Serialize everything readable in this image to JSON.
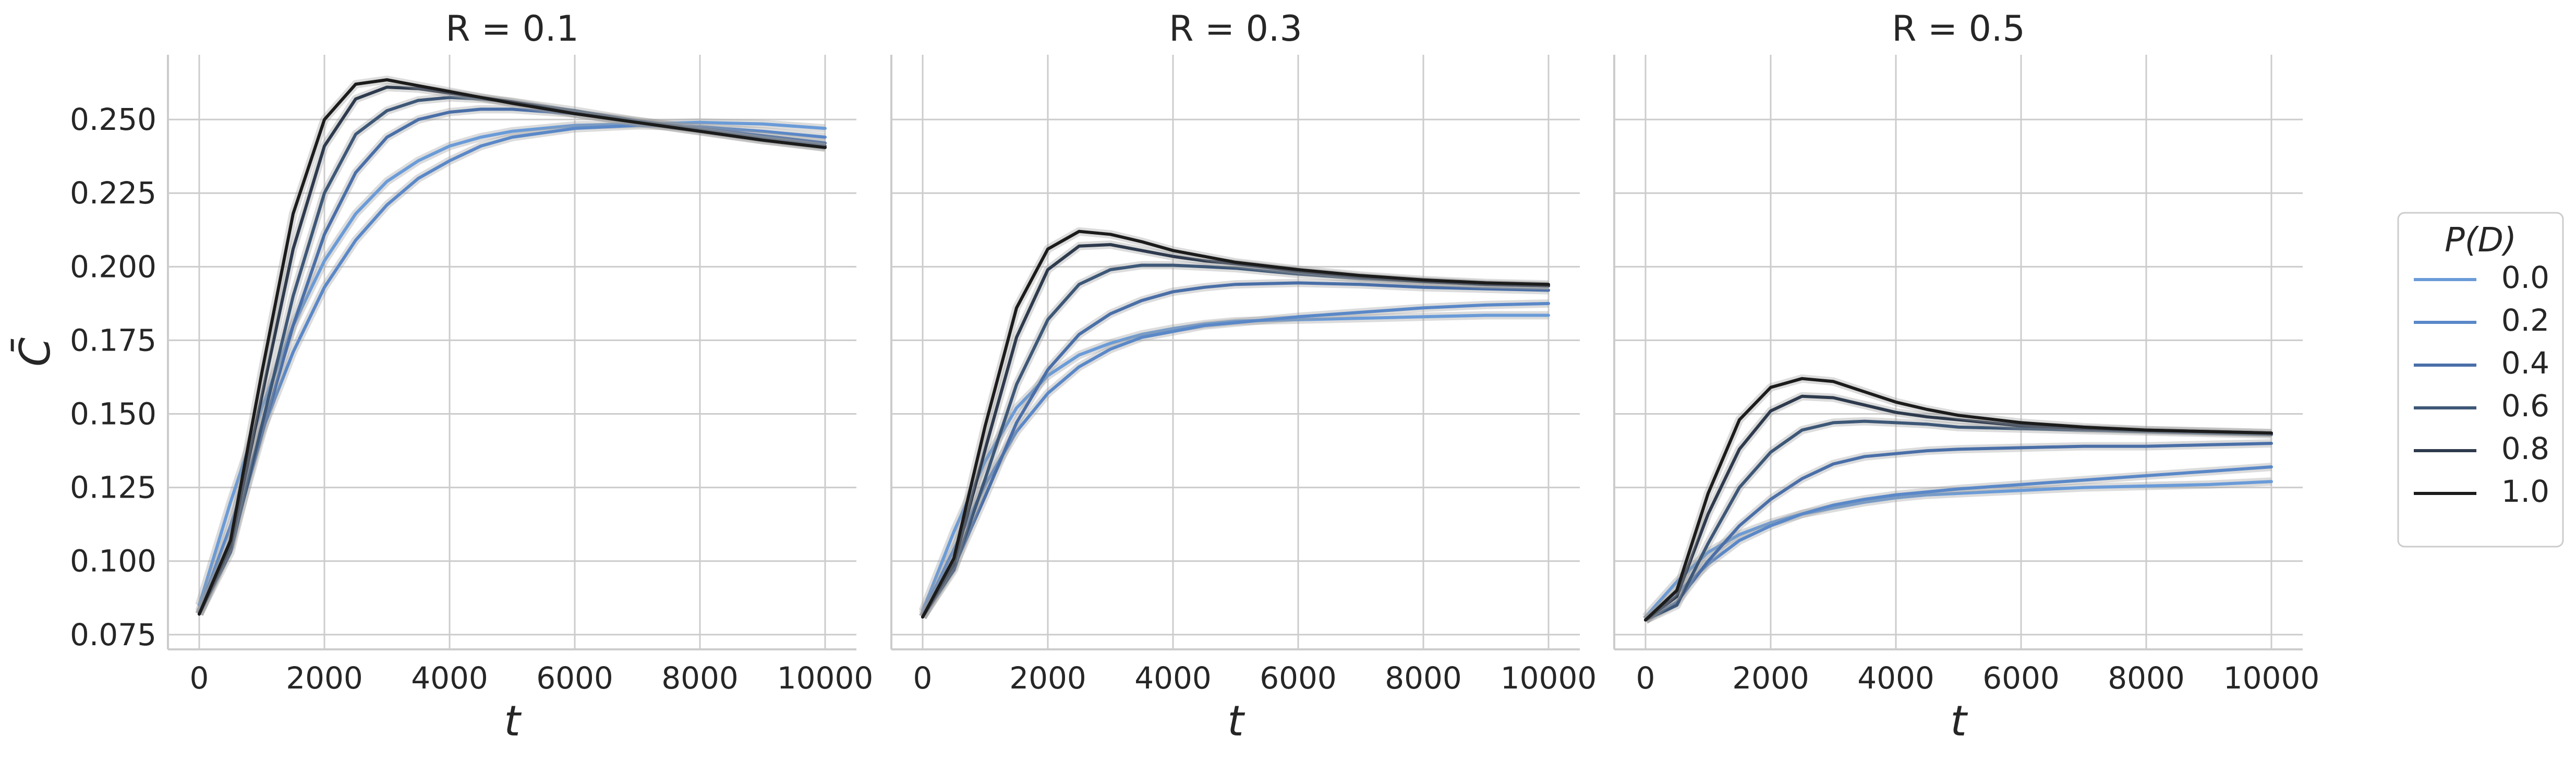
{
  "figure": {
    "ylabel": "C̄",
    "legend": {
      "title": "P(D)",
      "placement": "right"
    }
  },
  "chart_data": [
    {
      "type": "line",
      "title": "R = 0.1",
      "xlabel": "t",
      "ylabel": "C̄",
      "xlim": [
        -500,
        10500
      ],
      "ylim": [
        0.07,
        0.272
      ],
      "x_ticks": [
        "0",
        "2000",
        "4000",
        "6000",
        "8000",
        "10000"
      ],
      "y_ticks": [
        "0.075",
        "0.100",
        "0.125",
        "0.150",
        "0.175",
        "0.200",
        "0.225",
        "0.250"
      ],
      "grid": true,
      "x": [
        0,
        500,
        1000,
        1500,
        2000,
        2500,
        3000,
        3500,
        4000,
        4500,
        5000,
        6000,
        7000,
        8000,
        9000,
        10000
      ],
      "series": [
        {
          "name": "0.0",
          "color": "#6a9bd8",
          "values": [
            0.085,
            0.12,
            0.152,
            0.18,
            0.202,
            0.218,
            0.229,
            0.236,
            0.241,
            0.244,
            0.246,
            0.248,
            0.2485,
            0.249,
            0.2485,
            0.247
          ]
        },
        {
          "name": "0.2",
          "color": "#5a88c8",
          "values": [
            0.083,
            0.112,
            0.144,
            0.171,
            0.193,
            0.209,
            0.221,
            0.23,
            0.236,
            0.241,
            0.244,
            0.247,
            0.248,
            0.2475,
            0.246,
            0.244
          ]
        },
        {
          "name": "0.4",
          "color": "#4a6fa8",
          "values": [
            0.082,
            0.105,
            0.143,
            0.18,
            0.211,
            0.232,
            0.244,
            0.25,
            0.2525,
            0.2535,
            0.2535,
            0.252,
            0.2495,
            0.247,
            0.2445,
            0.242
          ]
        },
        {
          "name": "0.6",
          "color": "#3d5777",
          "values": [
            0.082,
            0.103,
            0.146,
            0.19,
            0.225,
            0.245,
            0.253,
            0.2565,
            0.2575,
            0.257,
            0.256,
            0.253,
            0.2495,
            0.2465,
            0.2435,
            0.241
          ]
        },
        {
          "name": "0.8",
          "color": "#2e3a4d",
          "values": [
            0.082,
            0.105,
            0.156,
            0.206,
            0.241,
            0.257,
            0.261,
            0.2605,
            0.259,
            0.2575,
            0.256,
            0.252,
            0.249,
            0.246,
            0.243,
            0.2405
          ]
        },
        {
          "name": "1.0",
          "color": "#1c1c1c",
          "values": [
            0.082,
            0.107,
            0.164,
            0.218,
            0.25,
            0.262,
            0.2635,
            0.2615,
            0.2595,
            0.2575,
            0.2555,
            0.252,
            0.249,
            0.246,
            0.243,
            0.2405
          ]
        }
      ]
    },
    {
      "type": "line",
      "title": "R = 0.3",
      "xlabel": "t",
      "xlim": [
        -500,
        10500
      ],
      "ylim": [
        0.07,
        0.272
      ],
      "x_ticks": [
        "0",
        "2000",
        "4000",
        "6000",
        "8000",
        "10000"
      ],
      "grid": true,
      "x": [
        0,
        500,
        1000,
        1500,
        2000,
        2500,
        3000,
        3500,
        4000,
        4500,
        5000,
        6000,
        7000,
        8000,
        9000,
        10000
      ],
      "series": [
        {
          "name": "0.0",
          "color": "#6a9bd8",
          "values": [
            0.083,
            0.11,
            0.134,
            0.152,
            0.163,
            0.17,
            0.174,
            0.177,
            0.179,
            0.1805,
            0.1815,
            0.182,
            0.1825,
            0.183,
            0.1835,
            0.1835
          ]
        },
        {
          "name": "0.2",
          "color": "#5a88c8",
          "values": [
            0.082,
            0.104,
            0.126,
            0.144,
            0.157,
            0.166,
            0.172,
            0.176,
            0.178,
            0.18,
            0.181,
            0.183,
            0.1845,
            0.186,
            0.187,
            0.1875
          ]
        },
        {
          "name": "0.4",
          "color": "#4a6fa8",
          "values": [
            0.081,
            0.098,
            0.122,
            0.147,
            0.165,
            0.177,
            0.184,
            0.1885,
            0.1915,
            0.193,
            0.194,
            0.1945,
            0.194,
            0.193,
            0.1925,
            0.192
          ]
        },
        {
          "name": "0.6",
          "color": "#3d5777",
          "values": [
            0.081,
            0.097,
            0.128,
            0.16,
            0.182,
            0.194,
            0.199,
            0.2005,
            0.2005,
            0.2,
            0.1995,
            0.1975,
            0.196,
            0.195,
            0.194,
            0.1935
          ]
        },
        {
          "name": "0.8",
          "color": "#2e3a4d",
          "values": [
            0.081,
            0.099,
            0.138,
            0.176,
            0.199,
            0.207,
            0.2075,
            0.2055,
            0.2035,
            0.202,
            0.201,
            0.1985,
            0.1965,
            0.195,
            0.194,
            0.1935
          ]
        },
        {
          "name": "1.0",
          "color": "#1c1c1c",
          "values": [
            0.081,
            0.101,
            0.146,
            0.186,
            0.206,
            0.212,
            0.211,
            0.2085,
            0.2055,
            0.2035,
            0.2015,
            0.199,
            0.197,
            0.1955,
            0.1945,
            0.194
          ]
        }
      ]
    },
    {
      "type": "line",
      "title": "R = 0.5",
      "xlabel": "t",
      "xlim": [
        -500,
        10500
      ],
      "ylim": [
        0.07,
        0.272
      ],
      "x_ticks": [
        "0",
        "2000",
        "4000",
        "6000",
        "8000",
        "10000"
      ],
      "grid": true,
      "x": [
        0,
        500,
        1000,
        1500,
        2000,
        2500,
        3000,
        3500,
        4000,
        4500,
        5000,
        6000,
        7000,
        8000,
        9000,
        10000
      ],
      "series": [
        {
          "name": "0.0",
          "color": "#6a9bd8",
          "values": [
            0.081,
            0.093,
            0.103,
            0.109,
            0.113,
            0.116,
            0.118,
            0.12,
            0.1215,
            0.1225,
            0.123,
            0.124,
            0.125,
            0.1255,
            0.126,
            0.127
          ]
        },
        {
          "name": "0.2",
          "color": "#5a88c8",
          "values": [
            0.08,
            0.089,
            0.099,
            0.107,
            0.112,
            0.116,
            0.119,
            0.121,
            0.1225,
            0.1235,
            0.1245,
            0.126,
            0.1275,
            0.129,
            0.1305,
            0.132
          ]
        },
        {
          "name": "0.4",
          "color": "#4a6fa8",
          "values": [
            0.08,
            0.086,
            0.1,
            0.112,
            0.121,
            0.128,
            0.133,
            0.1355,
            0.1365,
            0.1375,
            0.138,
            0.1385,
            0.139,
            0.139,
            0.1395,
            0.14
          ]
        },
        {
          "name": "0.6",
          "color": "#3d5777",
          "values": [
            0.08,
            0.085,
            0.106,
            0.125,
            0.137,
            0.1445,
            0.147,
            0.1475,
            0.147,
            0.1465,
            0.1455,
            0.145,
            0.1445,
            0.144,
            0.1435,
            0.143
          ]
        },
        {
          "name": "0.8",
          "color": "#2e3a4d",
          "values": [
            0.08,
            0.088,
            0.116,
            0.138,
            0.151,
            0.156,
            0.1555,
            0.153,
            0.1505,
            0.149,
            0.148,
            0.146,
            0.145,
            0.1445,
            0.144,
            0.1435
          ]
        },
        {
          "name": "1.0",
          "color": "#1c1c1c",
          "values": [
            0.08,
            0.09,
            0.123,
            0.148,
            0.159,
            0.162,
            0.161,
            0.1575,
            0.154,
            0.1515,
            0.1495,
            0.147,
            0.1455,
            0.1445,
            0.144,
            0.1435
          ]
        }
      ]
    }
  ]
}
